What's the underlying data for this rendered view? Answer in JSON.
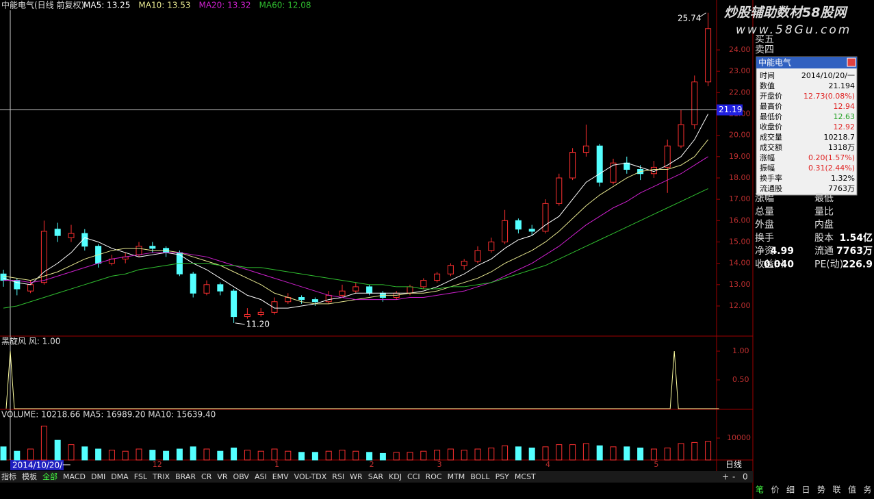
{
  "header": {
    "title": "中能电气(日线 前复权)",
    "legend": [
      "MA5: 13.25",
      "MA10: 13.53",
      "MA20: 13.32",
      "MA60: 12.08"
    ]
  },
  "watermark": {
    "title": "炒股辅助数材58股网",
    "url": "www.58Gu.com"
  },
  "chart_data": {
    "type": "candlestick",
    "categories": [
      null,
      null,
      null,
      null,
      null,
      null,
      null,
      null,
      null,
      null,
      null,
      "12",
      null,
      null,
      null,
      null,
      null,
      null,
      null,
      null,
      "1",
      null,
      null,
      null,
      null,
      null,
      null,
      "2",
      null,
      null,
      null,
      null,
      "3",
      null,
      null,
      null,
      null,
      null,
      null,
      null,
      "4",
      null,
      null,
      null,
      null,
      null,
      null,
      null,
      "5",
      null,
      null,
      null,
      null
    ],
    "open": [
      13.5,
      13.2,
      12.7,
      13.1,
      15.6,
      15.2,
      15.4,
      14.8,
      14.0,
      14.2,
      14.4,
      14.8,
      14.7,
      14.5,
      13.5,
      12.6,
      13.0,
      12.7,
      11.5,
      11.6,
      11.7,
      12.2,
      12.4,
      12.3,
      12.2,
      12.5,
      12.7,
      12.9,
      12.6,
      12.4,
      12.6,
      12.9,
      13.2,
      13.5,
      13.9,
      14.1,
      14.6,
      15.0,
      16.0,
      15.6,
      15.5,
      16.8,
      18.0,
      19.2,
      19.5,
      17.8,
      18.7,
      18.4,
      18.2,
      18.5,
      19.5,
      20.5,
      22.5
    ],
    "high": [
      13.7,
      13.3,
      13.2,
      16.0,
      15.9,
      15.8,
      15.6,
      14.9,
      14.4,
      14.5,
      15.0,
      15.0,
      14.8,
      14.6,
      13.6,
      13.2,
      13.1,
      12.8,
      11.9,
      11.9,
      12.4,
      12.6,
      12.5,
      12.4,
      12.7,
      13.0,
      13.1,
      13.0,
      12.7,
      12.7,
      13.0,
      13.3,
      13.6,
      14.0,
      14.2,
      14.8,
      15.2,
      16.5,
      16.1,
      15.8,
      17.0,
      18.2,
      19.4,
      20.5,
      19.6,
      18.9,
      19.0,
      18.6,
      18.8,
      19.8,
      21.2,
      22.8,
      25.74
    ],
    "low": [
      12.9,
      12.5,
      12.6,
      13.0,
      15.0,
      15.0,
      14.6,
      13.8,
      13.9,
      14.0,
      14.3,
      14.5,
      14.3,
      13.4,
      12.4,
      12.5,
      12.5,
      11.2,
      11.4,
      11.5,
      11.6,
      12.1,
      12.1,
      12.0,
      12.1,
      12.4,
      12.6,
      12.5,
      12.2,
      12.3,
      12.5,
      12.8,
      13.1,
      13.4,
      13.7,
      14.0,
      14.5,
      14.9,
      15.4,
      15.3,
      15.4,
      16.7,
      17.9,
      19.0,
      17.6,
      17.7,
      18.2,
      17.9,
      18.0,
      17.3,
      19.4,
      20.3,
      22.3
    ],
    "close": [
      13.2,
      12.8,
      13.0,
      15.5,
      15.3,
      15.4,
      14.8,
      14.0,
      14.2,
      14.3,
      14.8,
      14.7,
      14.5,
      13.5,
      12.6,
      13.0,
      12.7,
      11.5,
      11.6,
      11.7,
      12.2,
      12.4,
      12.3,
      12.2,
      12.5,
      12.7,
      12.9,
      12.6,
      12.4,
      12.6,
      12.9,
      13.2,
      13.5,
      13.9,
      14.1,
      14.6,
      15.0,
      16.0,
      15.6,
      15.5,
      16.8,
      18.0,
      19.2,
      19.5,
      17.8,
      18.7,
      18.4,
      18.2,
      18.5,
      19.5,
      20.5,
      22.5,
      25.0
    ],
    "series": [
      {
        "color": "#ffffff",
        "values": [
          13.3,
          13.1,
          13.0,
          13.6,
          14.0,
          14.5,
          15.2,
          15.0,
          14.7,
          14.5,
          14.3,
          14.4,
          14.5,
          14.4,
          14.0,
          13.7,
          13.3,
          12.9,
          12.5,
          12.3,
          11.9,
          11.9,
          12.0,
          12.1,
          12.3,
          12.4,
          12.6,
          12.6,
          12.6,
          12.6,
          12.6,
          12.7,
          12.9,
          13.2,
          13.5,
          13.9,
          14.2,
          14.7,
          15.1,
          15.3,
          15.8,
          16.2,
          17.0,
          17.8,
          18.2,
          18.6,
          18.7,
          18.5,
          18.3,
          18.6,
          19.0,
          19.8,
          21.0
        ]
      },
      {
        "color": "#e8e890",
        "values": [
          13.4,
          13.3,
          13.2,
          13.4,
          13.6,
          13.9,
          14.2,
          14.4,
          14.6,
          14.7,
          14.7,
          14.6,
          14.6,
          14.5,
          14.3,
          14.1,
          13.9,
          13.6,
          13.3,
          13.0,
          12.6,
          12.4,
          12.2,
          12.1,
          12.1,
          12.2,
          12.3,
          12.4,
          12.5,
          12.5,
          12.6,
          12.6,
          12.7,
          12.9,
          13.1,
          13.3,
          13.6,
          14.0,
          14.3,
          14.6,
          15.0,
          15.5,
          16.1,
          16.7,
          17.2,
          17.6,
          18.0,
          18.3,
          18.4,
          18.4,
          18.6,
          19.0,
          19.8
        ]
      },
      {
        "color": "#d020d0",
        "values": [
          13.2,
          13.2,
          13.1,
          13.2,
          13.4,
          13.6,
          13.8,
          14.0,
          14.2,
          14.3,
          14.4,
          14.5,
          14.5,
          14.5,
          14.4,
          14.3,
          14.1,
          13.9,
          13.7,
          13.5,
          13.3,
          13.1,
          12.9,
          12.7,
          12.5,
          12.4,
          12.3,
          12.3,
          12.3,
          12.3,
          12.4,
          12.4,
          12.5,
          12.6,
          12.7,
          12.9,
          13.1,
          13.4,
          13.7,
          14.0,
          14.4,
          14.8,
          15.3,
          15.8,
          16.2,
          16.6,
          16.9,
          17.3,
          17.6,
          17.9,
          18.2,
          18.6,
          19.0
        ]
      },
      {
        "color": "#30c030",
        "values": [
          11.9,
          12.0,
          12.2,
          12.4,
          12.6,
          12.8,
          13.0,
          13.2,
          13.4,
          13.5,
          13.7,
          13.8,
          13.9,
          14.0,
          14.0,
          14.0,
          13.9,
          13.9,
          13.8,
          13.8,
          13.7,
          13.6,
          13.5,
          13.4,
          13.3,
          13.2,
          13.1,
          13.0,
          13.0,
          12.9,
          12.9,
          12.8,
          12.8,
          12.9,
          12.9,
          13.0,
          13.1,
          13.3,
          13.5,
          13.7,
          13.9,
          14.2,
          14.5,
          14.8,
          15.1,
          15.4,
          15.7,
          16.0,
          16.3,
          16.6,
          16.9,
          17.2,
          17.5
        ]
      }
    ],
    "ylim": [
      10.62,
      25.86
    ],
    "yticks": [
      {
        "value": 12,
        "label": "12.00"
      },
      {
        "value": 13,
        "label": "13.00"
      },
      {
        "value": 14,
        "label": "14.00"
      },
      {
        "value": 15,
        "label": "15.00"
      },
      {
        "value": 16,
        "label": "16.00"
      },
      {
        "value": 17,
        "label": "17.00"
      },
      {
        "value": 18,
        "label": "18.00"
      },
      {
        "value": 19,
        "label": "19.00"
      },
      {
        "value": 20,
        "label": "20.00"
      },
      {
        "value": 21,
        "label": "21.00"
      },
      {
        "value": 22,
        "label": "22.00"
      },
      {
        "value": 23,
        "label": "23.00"
      },
      {
        "value": 24,
        "label": "24.00"
      }
    ],
    "crosshair": 21.19,
    "high_label": 25.74,
    "low_label": {
      "value": 11.2,
      "label": "11.20"
    },
    "up_color": "#ff3030",
    "down_color": "#54ffff"
  },
  "indicator": {
    "title": "黑旋风 风: 1.00",
    "color": "#ffffa0",
    "ylim": [
      0,
      1.25
    ],
    "yticks": [
      {
        "value": 0.5,
        "label": "0.50"
      },
      {
        "value": 1,
        "label": "1.00"
      }
    ],
    "values": [
      1,
      0,
      0,
      0,
      0,
      0,
      0,
      0,
      0,
      0,
      0,
      0,
      0,
      0,
      0,
      0,
      0,
      0,
      0,
      0,
      0,
      0,
      0,
      0,
      0,
      0,
      0,
      0,
      0,
      0,
      0,
      0,
      0,
      0,
      0,
      0,
      0,
      0,
      0,
      0,
      0,
      0,
      0,
      0,
      0,
      0,
      0,
      0,
      0,
      1,
      0,
      0,
      0
    ]
  },
  "volume": {
    "title": "VOLUME: 10218.66 MA5: 16989.20 MA10: 15639.40",
    "ylim": [
      0,
      22500
    ],
    "yticks": [
      10000
    ],
    "values": [
      6000,
      4000,
      5000,
      15500,
      9000,
      7000,
      6000,
      5000,
      4500,
      4000,
      5000,
      4500,
      4000,
      5000,
      6000,
      5000,
      4000,
      5500,
      4500,
      4000,
      5000,
      4000,
      3500,
      3500,
      4000,
      4500,
      4000,
      3500,
      3000,
      3500,
      3500,
      4000,
      4500,
      5000,
      4500,
      5000,
      5500,
      6500,
      6000,
      5500,
      6000,
      7000,
      7000,
      7500,
      6500,
      6000,
      6000,
      5500,
      5000,
      5500,
      7500,
      8000,
      8500
    ]
  },
  "cursor_date": "2014/10/20/一",
  "period": "日线",
  "zoom": [
    "+",
    "-",
    "0"
  ],
  "popup": {
    "title": "中能电气",
    "rows": [
      [
        "时间",
        "2014/10/20/一"
      ],
      [
        "数值",
        "21.194"
      ],
      [
        "开盘价",
        "12.73(0.08%)"
      ],
      [
        "最高价",
        "12.94"
      ],
      [
        "最低价",
        "12.63"
      ],
      [
        "收盘价",
        "12.92"
      ],
      [
        "成交量",
        "10218.7"
      ],
      [
        "成交额",
        "1318万"
      ],
      [
        "涨幅",
        "0.20(1.57%)"
      ],
      [
        "振幅",
        "0.31(2.44%)"
      ],
      [
        "换手率",
        "1.32%"
      ],
      [
        "流通股",
        "7763万"
      ]
    ]
  },
  "right_panel": {
    "top": [
      "买五",
      "卖四"
    ],
    "rows": [
      [
        "涨幅",
        "最低"
      ],
      [
        "总量",
        "量比"
      ],
      [
        "外盘",
        "内盘"
      ],
      [
        "换手",
        "股本",
        "1.54亿"
      ],
      [
        "净资",
        "4.99",
        "流通",
        "7763万"
      ],
      [
        "收益㈠",
        "0.040",
        "PE(动)",
        "226.9"
      ]
    ]
  },
  "toolbar": [
    "指标",
    "模板",
    "全部",
    "MACD",
    "DMI",
    "DMA",
    "FSL",
    "TRIX",
    "BRAR",
    "CR",
    "VR",
    "OBV",
    "ASI",
    "EMV",
    "VOL-TDX",
    "RSI",
    "WR",
    "SAR",
    "KDJ",
    "CCI",
    "ROC",
    "MTM",
    "BOLL",
    "PSY",
    "MCST"
  ],
  "side_tabs": [
    "笔",
    "价",
    "细",
    "日",
    "势",
    "联",
    "值",
    "务"
  ]
}
